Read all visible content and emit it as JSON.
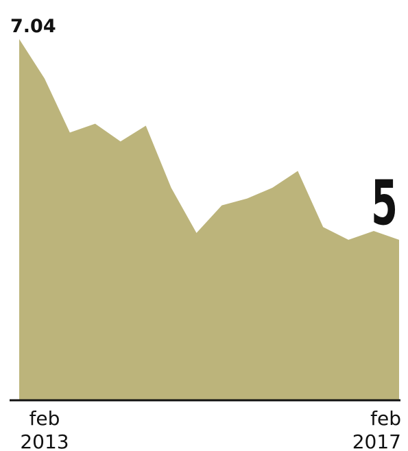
{
  "chart_data": {
    "type": "area",
    "categories": [
      "feb\n2013",
      null,
      null,
      null,
      null,
      null,
      null,
      null,
      null,
      null,
      null,
      null,
      null,
      null,
      null,
      "feb\n2017"
    ],
    "values": [
      7.04,
      6.64,
      6.09,
      6.18,
      6.0,
      6.16,
      5.53,
      5.07,
      5.35,
      5.42,
      5.53,
      5.7,
      5.13,
      5.0,
      5.09,
      5
    ],
    "value_labels": [
      "7.04",
      null,
      null,
      null,
      null,
      null,
      null,
      null,
      null,
      null,
      null,
      null,
      null,
      null,
      null,
      "5"
    ],
    "color": "#bcb47b",
    "ylim": [
      3.37,
      7.04
    ]
  }
}
